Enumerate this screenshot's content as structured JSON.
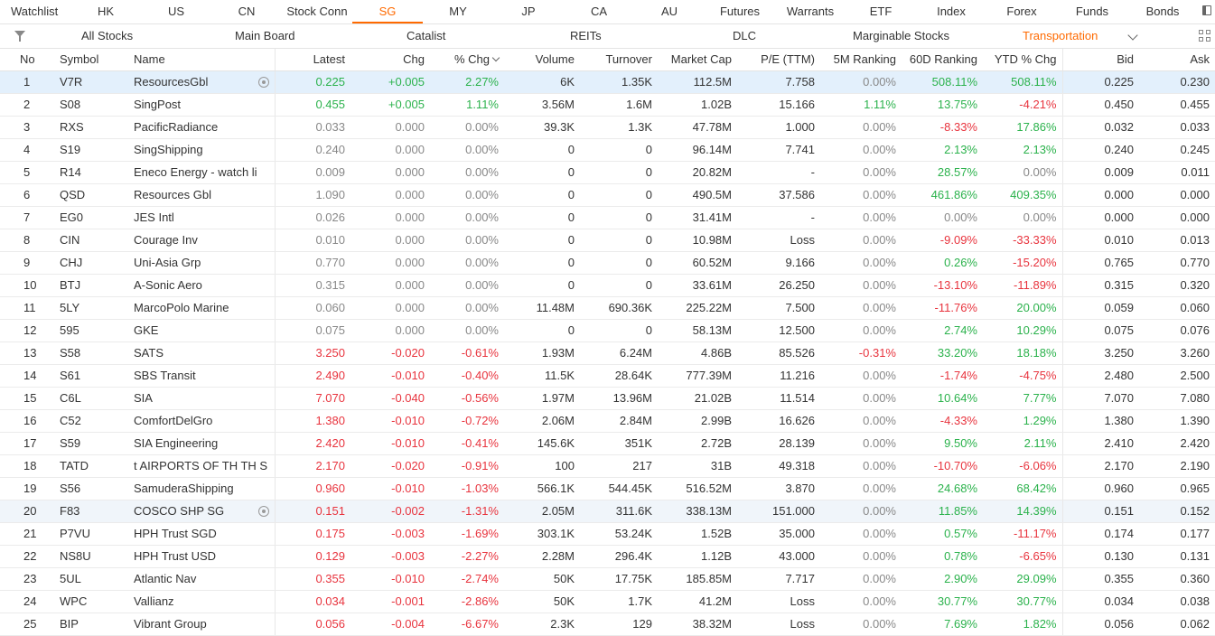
{
  "tabs": [
    "Watchlist",
    "HK",
    "US",
    "CN",
    "Stock Conn",
    "SG",
    "MY",
    "JP",
    "CA",
    "AU",
    "Futures",
    "Warrants",
    "ETF",
    "Index",
    "Forex",
    "Funds",
    "Bonds"
  ],
  "active_tab": "SG",
  "filters": [
    "All Stocks",
    "Main Board",
    "Catalist",
    "REITs",
    "DLC",
    "Marginable Stocks",
    "Transportation"
  ],
  "active_filter": "Transportation",
  "columns": [
    "No",
    "Symbol",
    "Name",
    "Latest",
    "Chg",
    "% Chg",
    "Volume",
    "Turnover",
    "Market Cap",
    "P/E (TTM)",
    "5M Ranking",
    "60D Ranking",
    "YTD % Chg",
    "Bid",
    "Ask"
  ],
  "rows": [
    {
      "no": "1",
      "symbol": "V7R",
      "name": "ResourcesGbl",
      "latest": "0.225",
      "chg": "+0.005",
      "pct": "2.27%",
      "volume": "6K",
      "turnover": "1.35K",
      "mcap": "112.5M",
      "pe": "7.758",
      "m5": "0.00%",
      "d60": "508.11%",
      "ytd": "508.11%",
      "bid": "0.225",
      "ask": "0.230",
      "dir": "up",
      "m5dir": "flat",
      "d60dir": "up",
      "ytddir": "up",
      "target": true
    },
    {
      "no": "2",
      "symbol": "S08",
      "name": "SingPost",
      "latest": "0.455",
      "chg": "+0.005",
      "pct": "1.11%",
      "volume": "3.56M",
      "turnover": "1.6M",
      "mcap": "1.02B",
      "pe": "15.166",
      "m5": "1.11%",
      "d60": "13.75%",
      "ytd": "-4.21%",
      "bid": "0.450",
      "ask": "0.455",
      "dir": "up",
      "m5dir": "up",
      "d60dir": "up",
      "ytddir": "down"
    },
    {
      "no": "3",
      "symbol": "RXS",
      "name": "PacificRadiance",
      "latest": "0.033",
      "chg": "0.000",
      "pct": "0.00%",
      "volume": "39.3K",
      "turnover": "1.3K",
      "mcap": "47.78M",
      "pe": "1.000",
      "m5": "0.00%",
      "d60": "-8.33%",
      "ytd": "17.86%",
      "bid": "0.032",
      "ask": "0.033",
      "dir": "flat",
      "m5dir": "flat",
      "d60dir": "down",
      "ytddir": "up"
    },
    {
      "no": "4",
      "symbol": "S19",
      "name": "SingShipping",
      "latest": "0.240",
      "chg": "0.000",
      "pct": "0.00%",
      "volume": "0",
      "turnover": "0",
      "mcap": "96.14M",
      "pe": "7.741",
      "m5": "0.00%",
      "d60": "2.13%",
      "ytd": "2.13%",
      "bid": "0.240",
      "ask": "0.245",
      "dir": "flat",
      "m5dir": "flat",
      "d60dir": "up",
      "ytddir": "up"
    },
    {
      "no": "5",
      "symbol": "R14",
      "name": "Eneco Energy - watch li",
      "latest": "0.009",
      "chg": "0.000",
      "pct": "0.00%",
      "volume": "0",
      "turnover": "0",
      "mcap": "20.82M",
      "pe": "-",
      "m5": "0.00%",
      "d60": "28.57%",
      "ytd": "0.00%",
      "bid": "0.009",
      "ask": "0.011",
      "dir": "flat",
      "m5dir": "flat",
      "d60dir": "up",
      "ytddir": "flat"
    },
    {
      "no": "6",
      "symbol": "QSD",
      "name": "Resources Gbl",
      "latest": "1.090",
      "chg": "0.000",
      "pct": "0.00%",
      "volume": "0",
      "turnover": "0",
      "mcap": "490.5M",
      "pe": "37.586",
      "m5": "0.00%",
      "d60": "461.86%",
      "ytd": "409.35%",
      "bid": "0.000",
      "ask": "0.000",
      "dir": "flat",
      "m5dir": "flat",
      "d60dir": "up",
      "ytddir": "up"
    },
    {
      "no": "7",
      "symbol": "EG0",
      "name": "JES Intl",
      "latest": "0.026",
      "chg": "0.000",
      "pct": "0.00%",
      "volume": "0",
      "turnover": "0",
      "mcap": "31.41M",
      "pe": "-",
      "m5": "0.00%",
      "d60": "0.00%",
      "ytd": "0.00%",
      "bid": "0.000",
      "ask": "0.000",
      "dir": "flat",
      "m5dir": "flat",
      "d60dir": "flat",
      "ytddir": "flat"
    },
    {
      "no": "8",
      "symbol": "CIN",
      "name": "Courage Inv",
      "latest": "0.010",
      "chg": "0.000",
      "pct": "0.00%",
      "volume": "0",
      "turnover": "0",
      "mcap": "10.98M",
      "pe": "Loss",
      "m5": "0.00%",
      "d60": "-9.09%",
      "ytd": "-33.33%",
      "bid": "0.010",
      "ask": "0.013",
      "dir": "flat",
      "m5dir": "flat",
      "d60dir": "down",
      "ytddir": "down"
    },
    {
      "no": "9",
      "symbol": "CHJ",
      "name": "Uni-Asia Grp",
      "latest": "0.770",
      "chg": "0.000",
      "pct": "0.00%",
      "volume": "0",
      "turnover": "0",
      "mcap": "60.52M",
      "pe": "9.166",
      "m5": "0.00%",
      "d60": "0.26%",
      "ytd": "-15.20%",
      "bid": "0.765",
      "ask": "0.770",
      "dir": "flat",
      "m5dir": "flat",
      "d60dir": "up",
      "ytddir": "down"
    },
    {
      "no": "10",
      "symbol": "BTJ",
      "name": "A-Sonic Aero",
      "latest": "0.315",
      "chg": "0.000",
      "pct": "0.00%",
      "volume": "0",
      "turnover": "0",
      "mcap": "33.61M",
      "pe": "26.250",
      "m5": "0.00%",
      "d60": "-13.10%",
      "ytd": "-11.89%",
      "bid": "0.315",
      "ask": "0.320",
      "dir": "flat",
      "m5dir": "flat",
      "d60dir": "down",
      "ytddir": "down"
    },
    {
      "no": "11",
      "symbol": "5LY",
      "name": "MarcoPolo Marine",
      "latest": "0.060",
      "chg": "0.000",
      "pct": "0.00%",
      "volume": "11.48M",
      "turnover": "690.36K",
      "mcap": "225.22M",
      "pe": "7.500",
      "m5": "0.00%",
      "d60": "-11.76%",
      "ytd": "20.00%",
      "bid": "0.059",
      "ask": "0.060",
      "dir": "flat",
      "m5dir": "flat",
      "d60dir": "down",
      "ytddir": "up"
    },
    {
      "no": "12",
      "symbol": "595",
      "name": "GKE",
      "latest": "0.075",
      "chg": "0.000",
      "pct": "0.00%",
      "volume": "0",
      "turnover": "0",
      "mcap": "58.13M",
      "pe": "12.500",
      "m5": "0.00%",
      "d60": "2.74%",
      "ytd": "10.29%",
      "bid": "0.075",
      "ask": "0.076",
      "dir": "flat",
      "m5dir": "flat",
      "d60dir": "up",
      "ytddir": "up"
    },
    {
      "no": "13",
      "symbol": "S58",
      "name": "SATS",
      "latest": "3.250",
      "chg": "-0.020",
      "pct": "-0.61%",
      "volume": "1.93M",
      "turnover": "6.24M",
      "mcap": "4.86B",
      "pe": "85.526",
      "m5": "-0.31%",
      "d60": "33.20%",
      "ytd": "18.18%",
      "bid": "3.250",
      "ask": "3.260",
      "dir": "down",
      "m5dir": "down",
      "d60dir": "up",
      "ytddir": "up"
    },
    {
      "no": "14",
      "symbol": "S61",
      "name": "SBS Transit",
      "latest": "2.490",
      "chg": "-0.010",
      "pct": "-0.40%",
      "volume": "11.5K",
      "turnover": "28.64K",
      "mcap": "777.39M",
      "pe": "11.216",
      "m5": "0.00%",
      "d60": "-1.74%",
      "ytd": "-4.75%",
      "bid": "2.480",
      "ask": "2.500",
      "dir": "down",
      "m5dir": "flat",
      "d60dir": "down",
      "ytddir": "down"
    },
    {
      "no": "15",
      "symbol": "C6L",
      "name": "SIA",
      "latest": "7.070",
      "chg": "-0.040",
      "pct": "-0.56%",
      "volume": "1.97M",
      "turnover": "13.96M",
      "mcap": "21.02B",
      "pe": "11.514",
      "m5": "0.00%",
      "d60": "10.64%",
      "ytd": "7.77%",
      "bid": "7.070",
      "ask": "7.080",
      "dir": "down",
      "m5dir": "flat",
      "d60dir": "up",
      "ytddir": "up"
    },
    {
      "no": "16",
      "symbol": "C52",
      "name": "ComfortDelGro",
      "latest": "1.380",
      "chg": "-0.010",
      "pct": "-0.72%",
      "volume": "2.06M",
      "turnover": "2.84M",
      "mcap": "2.99B",
      "pe": "16.626",
      "m5": "0.00%",
      "d60": "-4.33%",
      "ytd": "1.29%",
      "bid": "1.380",
      "ask": "1.390",
      "dir": "down",
      "m5dir": "flat",
      "d60dir": "down",
      "ytddir": "up"
    },
    {
      "no": "17",
      "symbol": "S59",
      "name": "SIA Engineering",
      "latest": "2.420",
      "chg": "-0.010",
      "pct": "-0.41%",
      "volume": "145.6K",
      "turnover": "351K",
      "mcap": "2.72B",
      "pe": "28.139",
      "m5": "0.00%",
      "d60": "9.50%",
      "ytd": "2.11%",
      "bid": "2.410",
      "ask": "2.420",
      "dir": "down",
      "m5dir": "flat",
      "d60dir": "up",
      "ytddir": "up"
    },
    {
      "no": "18",
      "symbol": "TATD",
      "name": "t AIRPORTS OF TH TH S",
      "latest": "2.170",
      "chg": "-0.020",
      "pct": "-0.91%",
      "volume": "100",
      "turnover": "217",
      "mcap": "31B",
      "pe": "49.318",
      "m5": "0.00%",
      "d60": "-10.70%",
      "ytd": "-6.06%",
      "bid": "2.170",
      "ask": "2.190",
      "dir": "down",
      "m5dir": "flat",
      "d60dir": "down",
      "ytddir": "down"
    },
    {
      "no": "19",
      "symbol": "S56",
      "name": "SamuderaShipping",
      "latest": "0.960",
      "chg": "-0.010",
      "pct": "-1.03%",
      "volume": "566.1K",
      "turnover": "544.45K",
      "mcap": "516.52M",
      "pe": "3.870",
      "m5": "0.00%",
      "d60": "24.68%",
      "ytd": "68.42%",
      "bid": "0.960",
      "ask": "0.965",
      "dir": "down",
      "m5dir": "flat",
      "d60dir": "up",
      "ytddir": "up"
    },
    {
      "no": "20",
      "symbol": "F83",
      "name": "COSCO SHP SG",
      "latest": "0.151",
      "chg": "-0.002",
      "pct": "-1.31%",
      "volume": "2.05M",
      "turnover": "311.6K",
      "mcap": "338.13M",
      "pe": "151.000",
      "m5": "0.00%",
      "d60": "11.85%",
      "ytd": "14.39%",
      "bid": "0.151",
      "ask": "0.152",
      "dir": "down",
      "m5dir": "flat",
      "d60dir": "up",
      "ytddir": "up",
      "target": true,
      "hover": true
    },
    {
      "no": "21",
      "symbol": "P7VU",
      "name": "HPH Trust SGD",
      "latest": "0.175",
      "chg": "-0.003",
      "pct": "-1.69%",
      "volume": "303.1K",
      "turnover": "53.24K",
      "mcap": "1.52B",
      "pe": "35.000",
      "m5": "0.00%",
      "d60": "0.57%",
      "ytd": "-11.17%",
      "bid": "0.174",
      "ask": "0.177",
      "dir": "down",
      "m5dir": "flat",
      "d60dir": "up",
      "ytddir": "down"
    },
    {
      "no": "22",
      "symbol": "NS8U",
      "name": "HPH Trust USD",
      "latest": "0.129",
      "chg": "-0.003",
      "pct": "-2.27%",
      "volume": "2.28M",
      "turnover": "296.4K",
      "mcap": "1.12B",
      "pe": "43.000",
      "m5": "0.00%",
      "d60": "0.78%",
      "ytd": "-6.65%",
      "bid": "0.130",
      "ask": "0.131",
      "dir": "down",
      "m5dir": "flat",
      "d60dir": "up",
      "ytddir": "down"
    },
    {
      "no": "23",
      "symbol": "5UL",
      "name": "Atlantic Nav",
      "latest": "0.355",
      "chg": "-0.010",
      "pct": "-2.74%",
      "volume": "50K",
      "turnover": "17.75K",
      "mcap": "185.85M",
      "pe": "7.717",
      "m5": "0.00%",
      "d60": "2.90%",
      "ytd": "29.09%",
      "bid": "0.355",
      "ask": "0.360",
      "dir": "down",
      "m5dir": "flat",
      "d60dir": "up",
      "ytddir": "up"
    },
    {
      "no": "24",
      "symbol": "WPC",
      "name": "Vallianz",
      "latest": "0.034",
      "chg": "-0.001",
      "pct": "-2.86%",
      "volume": "50K",
      "turnover": "1.7K",
      "mcap": "41.2M",
      "pe": "Loss",
      "m5": "0.00%",
      "d60": "30.77%",
      "ytd": "30.77%",
      "bid": "0.034",
      "ask": "0.038",
      "dir": "down",
      "m5dir": "flat",
      "d60dir": "up",
      "ytddir": "up"
    },
    {
      "no": "25",
      "symbol": "BIP",
      "name": "Vibrant Group",
      "latest": "0.056",
      "chg": "-0.004",
      "pct": "-6.67%",
      "volume": "2.3K",
      "turnover": "129",
      "mcap": "38.32M",
      "pe": "Loss",
      "m5": "0.00%",
      "d60": "7.69%",
      "ytd": "1.82%",
      "bid": "0.056",
      "ask": "0.062",
      "dir": "down",
      "m5dir": "flat",
      "d60dir": "up",
      "ytddir": "up"
    }
  ],
  "colors": {
    "accent": "#ff6a00",
    "up": "#2bb24c",
    "down": "#e8343e",
    "selected_row": "#e3f0fc"
  }
}
